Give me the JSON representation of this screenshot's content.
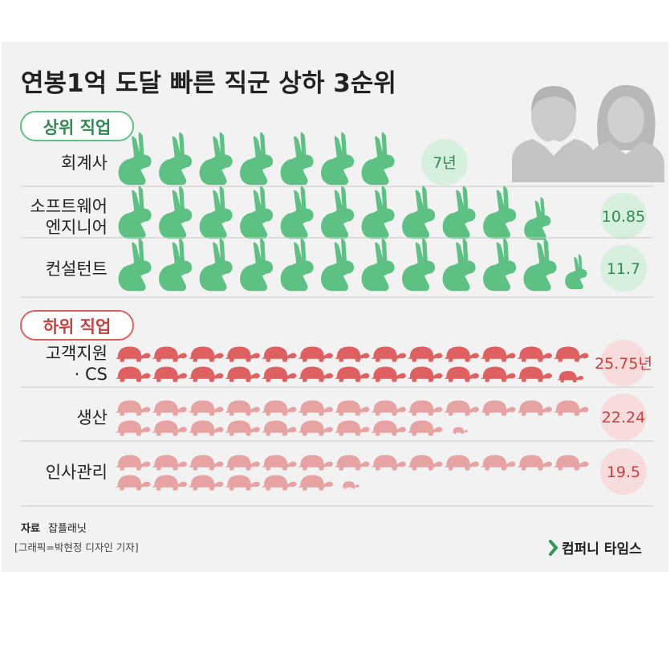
{
  "title": "연봉1억 도달 빠른 직군 상하 3순위",
  "chart_data": {
    "type": "pictograph",
    "unit": "년",
    "sections": [
      {
        "label": "상위 직업",
        "color": "#5cc183",
        "badge_bg": "#d7f0de",
        "badge_text": "#2e8a4f",
        "icon": "rabbit-icon",
        "rows": [
          {
            "label": [
              "회계사"
            ],
            "value": 7,
            "value_label": "7년"
          },
          {
            "label": [
              "소프트웨어",
              "엔지니어"
            ],
            "value": 10.85,
            "value_label": "10.85"
          },
          {
            "label": [
              "컨설턴트"
            ],
            "value": 11.7,
            "value_label": "11.7"
          }
        ]
      },
      {
        "label": "하위 직업",
        "color": "#de6060",
        "badge_bg": "#f8dcdc",
        "badge_text": "#c74040",
        "icon": "turtle-icon",
        "rows": [
          {
            "label": [
              "고객지원",
              "· CS"
            ],
            "value": 25.75,
            "value_label": "25.75년"
          },
          {
            "label": [
              "생산"
            ],
            "value": 22.24,
            "value_label": "22.24"
          },
          {
            "label": [
              "인사관리"
            ],
            "value": 19.5,
            "value_label": "19.5"
          }
        ]
      }
    ]
  },
  "source": {
    "label": "자료",
    "name": "잡플래닛"
  },
  "credit": "[그래픽=박현정 디자인 기자]",
  "publisher": "컴퍼니 타임스",
  "colors": {
    "background": "#f2f2f2",
    "divider": "#c8c8c8",
    "text": "#222222",
    "accent_green": "#5cc183",
    "accent_red": "#de6060",
    "person": "#c4c4c4"
  }
}
